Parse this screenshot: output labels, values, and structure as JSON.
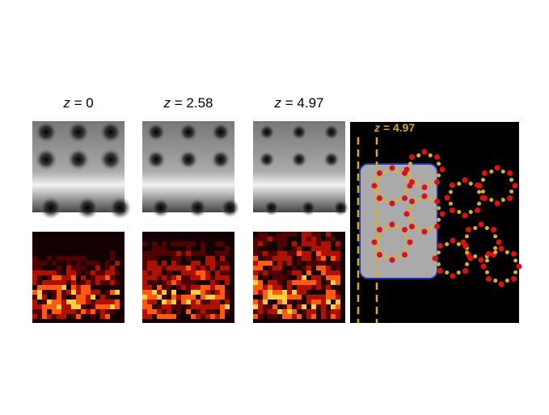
{
  "columns": [
    {
      "variable": "z",
      "equation": "= 0"
    },
    {
      "variable": "z",
      "equation": "= 2.58"
    },
    {
      "variable": "z",
      "equation": "= 4.97"
    }
  ],
  "structure_label": {
    "variable": "z",
    "equation": "= 4.97"
  }
}
